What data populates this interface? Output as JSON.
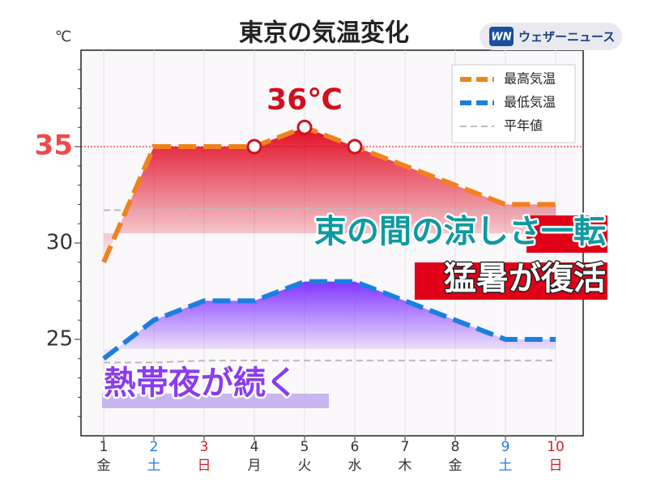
{
  "chart_data": {
    "type": "line",
    "title": "東京の気温変化",
    "brand": "ウェザーニュース",
    "brand_mark": "WN",
    "y_unit": "℃",
    "categories": [
      "1",
      "2",
      "3",
      "4",
      "5",
      "6",
      "7",
      "8",
      "9",
      "10"
    ],
    "weekdays": [
      "金",
      "土",
      "日",
      "月",
      "火",
      "水",
      "木",
      "金",
      "土",
      "日"
    ],
    "label_colors": [
      "#333333",
      "#1a7fe0",
      "#d0202a",
      "#333333",
      "#333333",
      "#333333",
      "#333333",
      "#333333",
      "#1a7fe0",
      "#d0202a"
    ],
    "series": [
      {
        "name": "最高気温",
        "color": "#f0821e",
        "values": [
          29,
          35,
          35,
          35,
          36,
          35,
          34,
          33,
          32,
          32
        ]
      },
      {
        "name": "最低気温",
        "color": "#1a7fe0",
        "values": [
          24,
          26,
          27,
          27,
          28,
          28,
          27,
          26,
          25,
          25
        ]
      }
    ],
    "normal": {
      "name": "平年値",
      "color": "#bbbbbb",
      "high": [
        31.7,
        31.7,
        31.8,
        31.8,
        31.8,
        31.8,
        31.8,
        31.7,
        31.7,
        31.7
      ],
      "low": [
        23.8,
        23.8,
        23.9,
        23.9,
        23.9,
        23.9,
        23.9,
        23.9,
        23.9,
        23.9
      ]
    },
    "ylim": [
      20,
      40
    ],
    "yticks": [
      25,
      30,
      35
    ],
    "yminorticks": [
      21,
      22,
      23,
      24,
      26,
      27,
      28,
      29,
      31,
      32,
      33,
      34,
      36,
      37,
      38,
      39
    ],
    "highlight_tick": 35,
    "reference_line": 35,
    "marked_points": [
      3,
      4,
      5
    ],
    "peak_label": "36℃",
    "legend": "upper right",
    "grid": true,
    "headlines": [
      "束の間の涼しさ一転",
      "猛暑が復活",
      "熱帯夜が続く"
    ]
  }
}
